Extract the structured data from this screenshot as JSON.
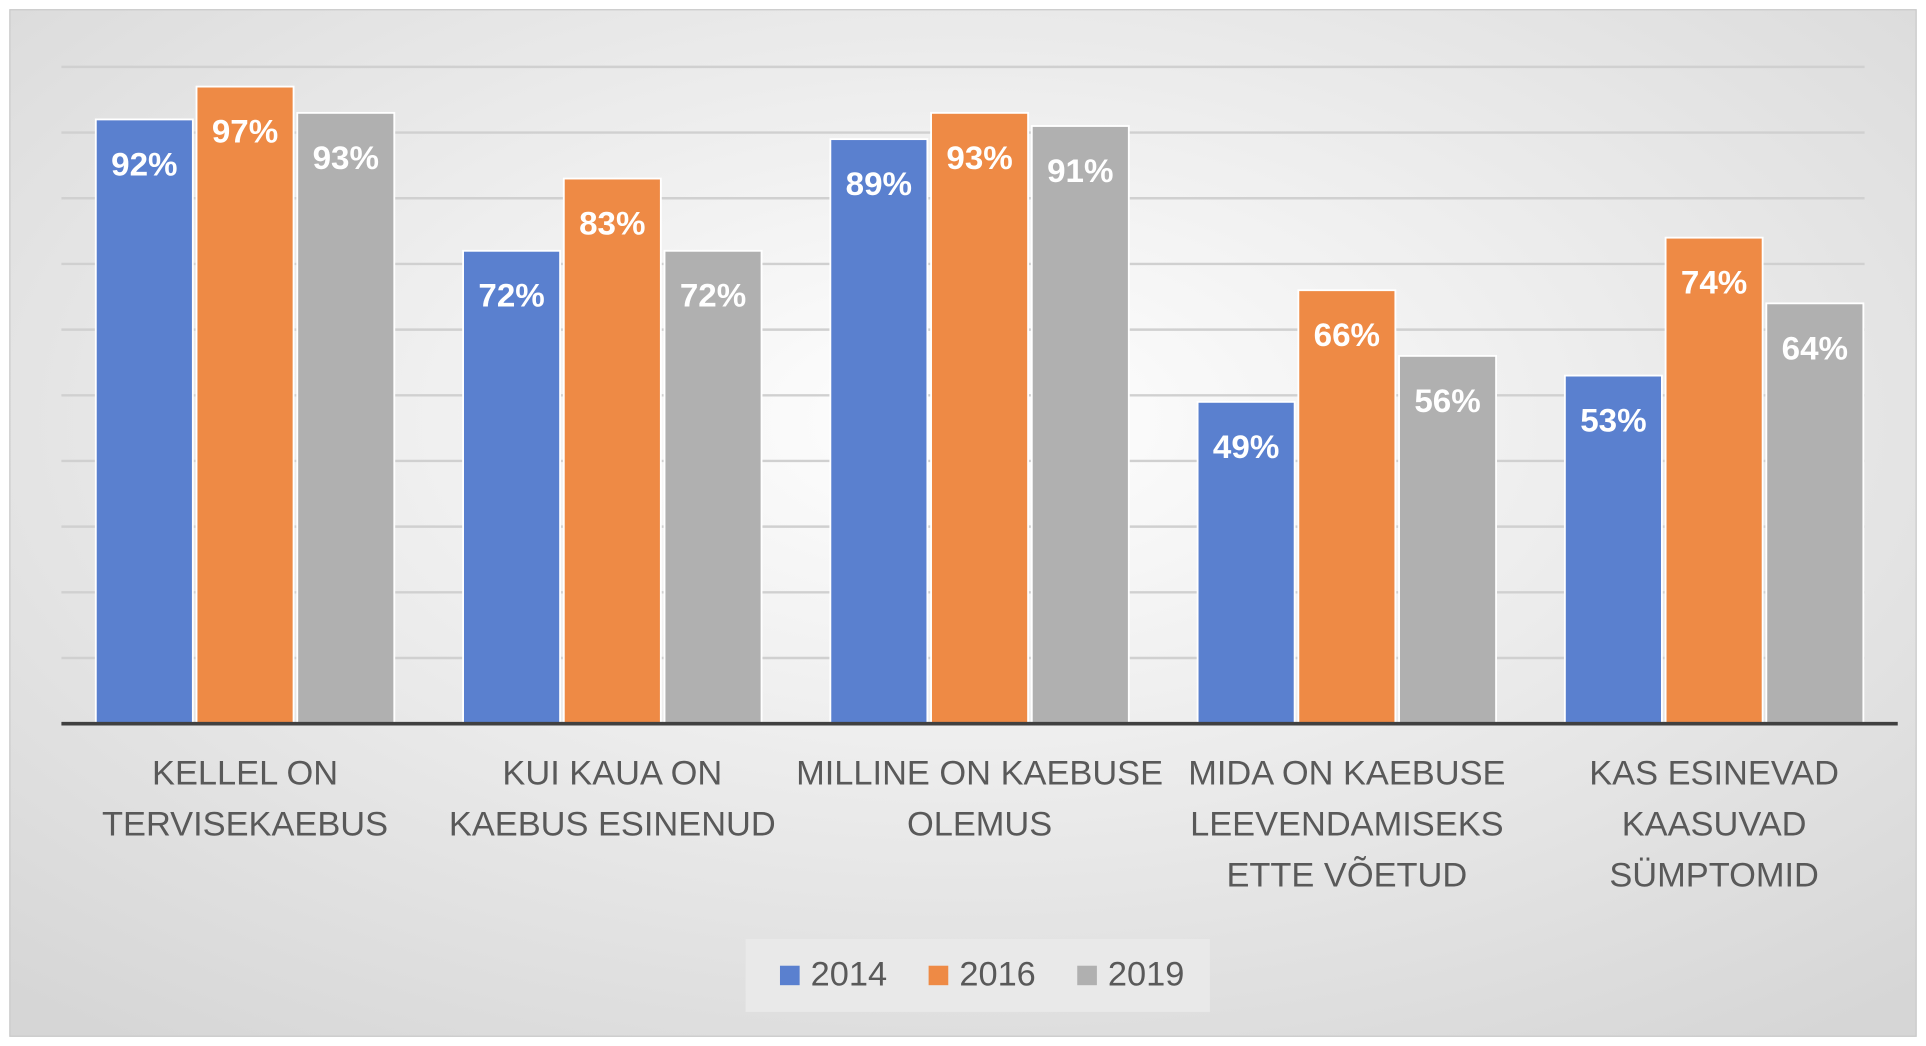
{
  "chart_data": {
    "type": "bar",
    "categories": [
      "KELLEL ON TERVISEKAEBUS",
      "KUI KAUA ON KAEBUS ESINENUD",
      "MILLINE ON KAEBUSE OLEMUS",
      "MIDA ON KAEBUSE LEEVENDAMISEKS ETTE VÕETUD",
      "KAS ESINEVAD KAASUVAD SÜMPTOMID"
    ],
    "series": [
      {
        "name": "2014",
        "color": "#5a80cf",
        "values": [
          92,
          72,
          89,
          49,
          53
        ],
        "value_labels": [
          "92%",
          "72%",
          "89%",
          "49%",
          "53%"
        ]
      },
      {
        "name": "2016",
        "color": "#ee8a45",
        "values": [
          97,
          83,
          93,
          66,
          74
        ],
        "value_labels": [
          "97%",
          "83%",
          "93%",
          "66%",
          "74%"
        ]
      },
      {
        "name": "2019",
        "color": "#b0b0b0",
        "values": [
          93,
          72,
          91,
          56,
          64
        ],
        "value_labels": [
          "93%",
          "72%",
          "91%",
          "56%",
          "64%"
        ]
      }
    ],
    "ylim": [
      0,
      100
    ],
    "yticks": [
      0,
      10,
      20,
      30,
      40,
      50,
      60,
      70,
      80,
      90,
      100
    ],
    "grid": true,
    "legend": "bottom"
  }
}
